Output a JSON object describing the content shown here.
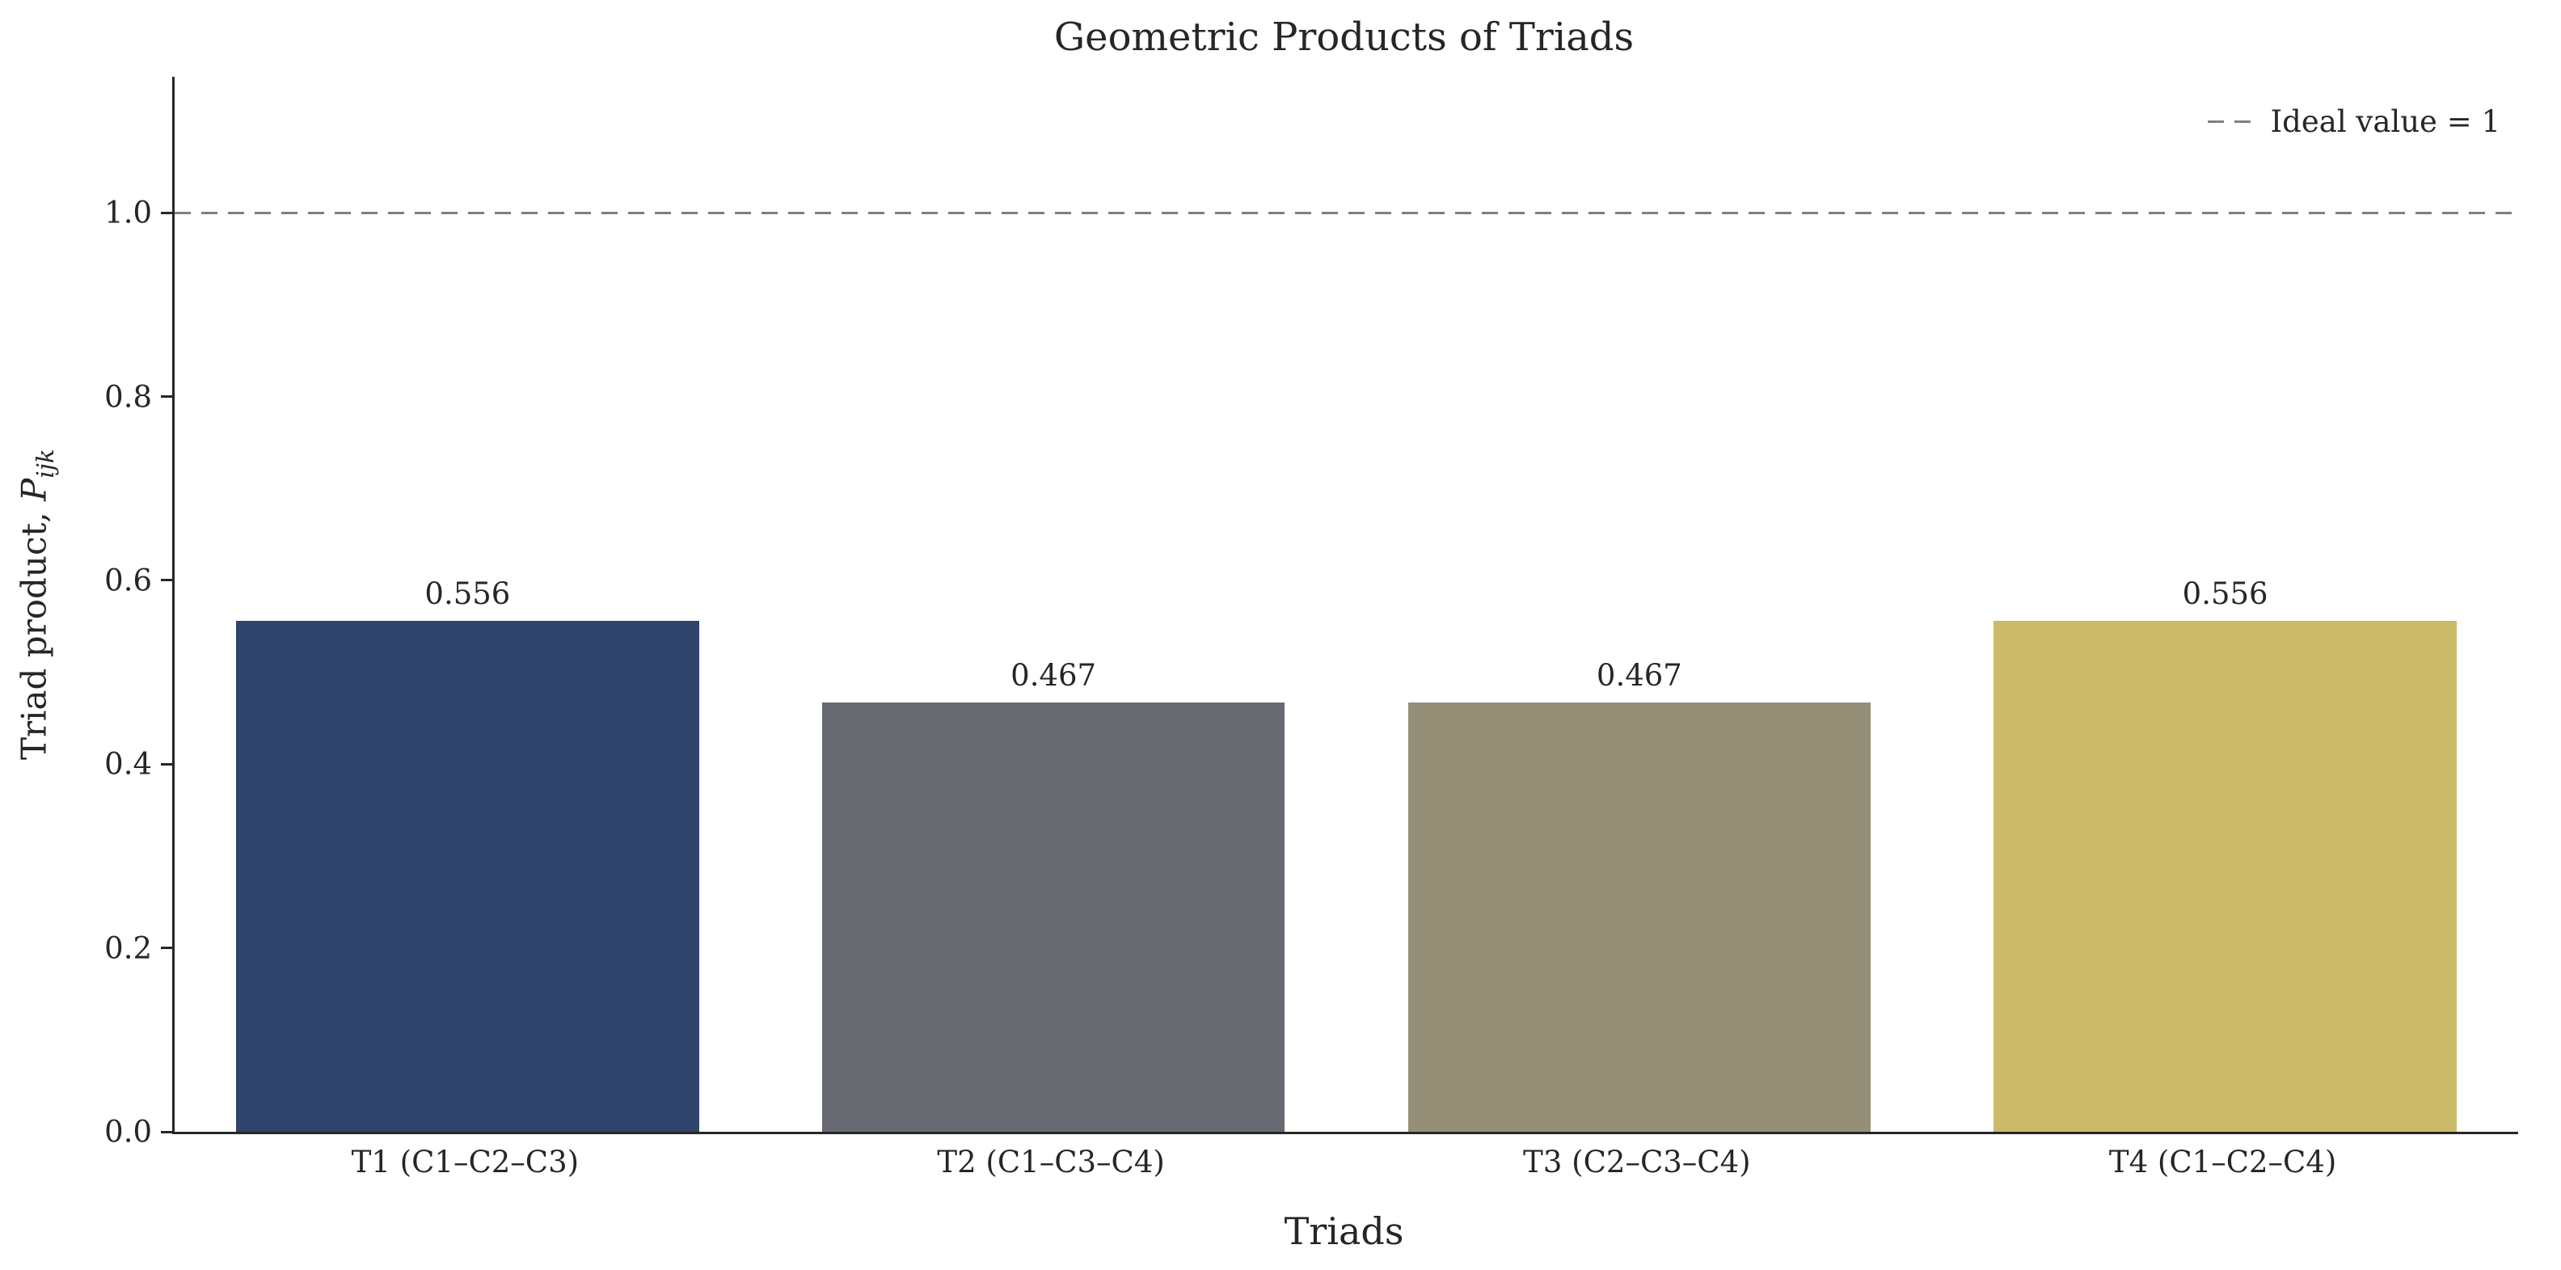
{
  "chart_data": {
    "type": "bar",
    "title": "Geometric Products of Triads",
    "xlabel": "Triads",
    "ylabel": {
      "prefix": "Triad product, ",
      "math_base": "P",
      "math_sub": "ijk"
    },
    "categories": [
      "T1 (C1–C2–C3)",
      "T2 (C1–C3–C4)",
      "T3 (C2–C3–C4)",
      "T4 (C1–C2–C4)"
    ],
    "values": [
      0.556,
      0.467,
      0.467,
      0.556
    ],
    "value_labels": [
      "0.556",
      "0.467",
      "0.467",
      "0.556"
    ],
    "bar_colors": [
      "#31446B",
      "#666970",
      "#958F78",
      "#CBBA69"
    ],
    "yticks": [
      0.0,
      0.2,
      0.4,
      0.6,
      0.8,
      1.0
    ],
    "ytick_labels": [
      "0.0",
      "0.2",
      "0.4",
      "0.6",
      "0.8",
      "1.0"
    ],
    "ylim": [
      0,
      1.148
    ],
    "grid": false,
    "legend_position": "upper right",
    "reference_line": {
      "value": 1.0,
      "style": "dashed",
      "color": "#7f7f7f",
      "label": "Ideal value = 1"
    },
    "axis_color": "#262626",
    "text_color": "#262626"
  }
}
